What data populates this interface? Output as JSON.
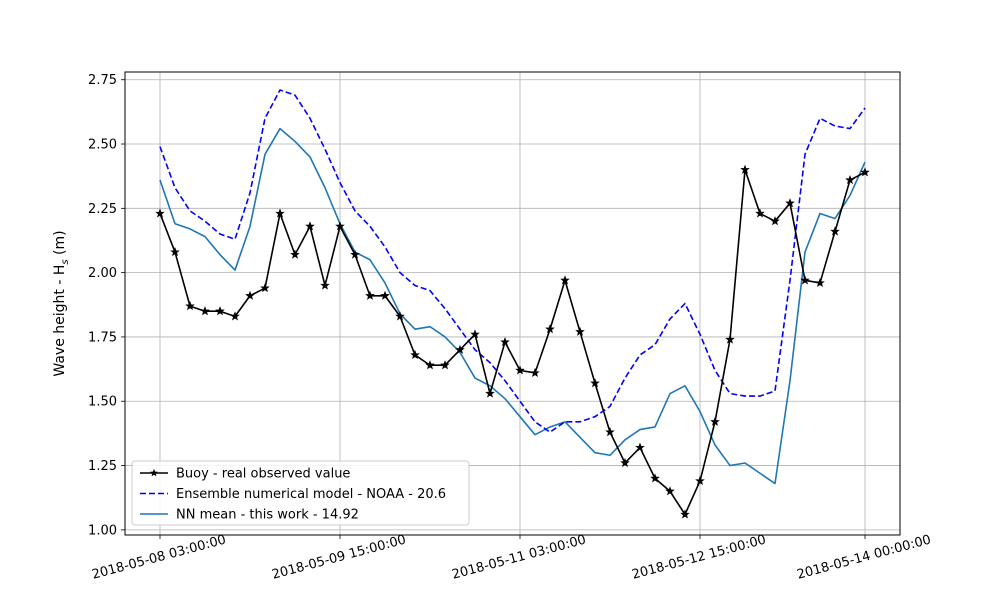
{
  "chart_data": {
    "type": "line",
    "title": "",
    "xlabel": "",
    "ylabel": "Wave height - H",
    "ylabel_sub": "s",
    "ylabel_unit": " (m)",
    "ylim": [
      0.98,
      2.78
    ],
    "grid": true,
    "legend_position": "lower-left",
    "x_start": "2018-05-08 03:00:00",
    "x_end": "2018-05-14 00:00:00",
    "x_ticks": [
      {
        "label": "2018-05-08 03:00:00",
        "hours": 0
      },
      {
        "label": "2018-05-09 15:00:00",
        "hours": 36
      },
      {
        "label": "2018-05-11 03:00:00",
        "hours": 72
      },
      {
        "label": "2018-05-12 15:00:00",
        "hours": 108
      },
      {
        "label": "2018-05-14 00:00:00",
        "hours": 141
      }
    ],
    "y_ticks": [
      {
        "label": "1.00",
        "value": 1.0
      },
      {
        "label": "1.25",
        "value": 1.25
      },
      {
        "label": "1.50",
        "value": 1.5
      },
      {
        "label": "1.75",
        "value": 1.75
      },
      {
        "label": "2.00",
        "value": 2.0
      },
      {
        "label": "2.25",
        "value": 2.25
      },
      {
        "label": "2.50",
        "value": 2.5
      },
      {
        "label": "2.75",
        "value": 2.75
      }
    ],
    "sample_step_hours": 3,
    "series": [
      {
        "name": "Buoy - real observed value",
        "color": "#000000",
        "line_style": "solid",
        "marker": "star",
        "values": [
          2.23,
          2.08,
          1.87,
          1.85,
          1.85,
          1.83,
          1.91,
          1.94,
          2.23,
          2.07,
          2.18,
          1.95,
          2.18,
          2.07,
          1.91,
          1.91,
          1.83,
          1.68,
          1.64,
          1.64,
          1.7,
          1.76,
          1.53,
          1.73,
          1.62,
          1.61,
          1.78,
          1.97,
          1.77,
          1.57,
          1.38,
          1.26,
          1.32,
          1.2,
          1.15,
          1.06,
          1.19,
          1.42,
          1.74,
          2.4,
          2.23,
          2.2,
          2.27,
          1.97,
          1.96,
          2.16,
          2.36,
          2.39
        ]
      },
      {
        "name": "Ensemble numerical model - NOAA - 20.6",
        "color": "#0000ff",
        "line_style": "dashed",
        "marker": "none",
        "values": [
          2.49,
          2.33,
          2.24,
          2.2,
          2.15,
          2.13,
          2.31,
          2.6,
          2.71,
          2.69,
          2.6,
          2.48,
          2.35,
          2.24,
          2.18,
          2.1,
          2.0,
          1.95,
          1.93,
          1.86,
          1.78,
          1.7,
          1.65,
          1.58,
          1.5,
          1.42,
          1.38,
          1.42,
          1.42,
          1.44,
          1.48,
          1.59,
          1.68,
          1.72,
          1.82,
          1.88,
          1.76,
          1.62,
          1.53,
          1.52,
          1.52,
          1.54,
          1.97,
          2.46,
          2.6,
          2.57,
          2.56,
          2.64
        ]
      },
      {
        "name": "NN mean - this work - 14.92",
        "color": "#1f77b4",
        "line_style": "solid",
        "marker": "none",
        "values": [
          2.36,
          2.19,
          2.17,
          2.14,
          2.07,
          2.01,
          2.18,
          2.46,
          2.56,
          2.51,
          2.45,
          2.33,
          2.19,
          2.08,
          2.05,
          1.96,
          1.84,
          1.78,
          1.79,
          1.75,
          1.69,
          1.59,
          1.56,
          1.51,
          1.44,
          1.37,
          1.4,
          1.42,
          1.36,
          1.3,
          1.29,
          1.35,
          1.39,
          1.4,
          1.53,
          1.56,
          1.46,
          1.33,
          1.25,
          1.26,
          1.22,
          1.18,
          1.58,
          2.08,
          2.23,
          2.21,
          2.3,
          2.43
        ]
      }
    ]
  }
}
